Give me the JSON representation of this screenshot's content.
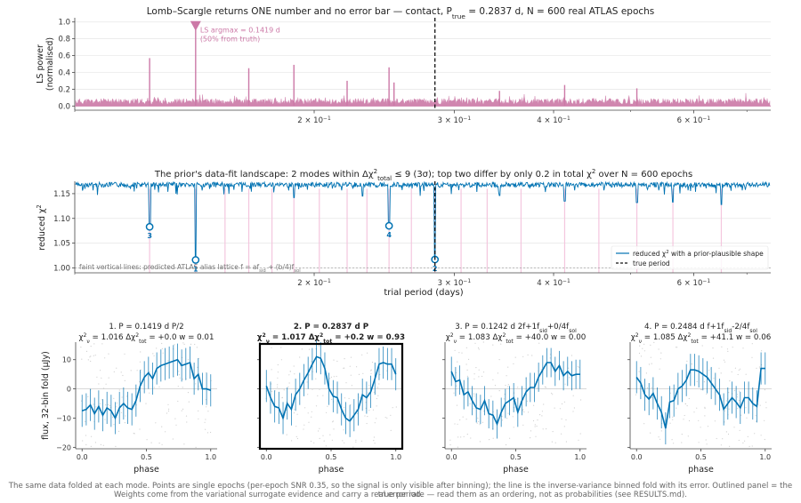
{
  "colors": {
    "ls": "#cc79a7",
    "chi": "#0072b2",
    "alias": "#f4c6de",
    "grid": "#e6e6e6",
    "axis": "#444444"
  },
  "chart_data": [
    {
      "type": "line",
      "id": "ls",
      "title": "Lomb–Scargle returns ONE number and no error bar   —   contact, P",
      "title_sub": "true",
      "title_tail": " = 0.2837 d, N = 600 real ATLAS epochs",
      "ylabel": [
        "LS power",
        "(normalised)"
      ],
      "xscale": "log",
      "xlim": [
        0.1,
        0.75
      ],
      "ylim": [
        -0.05,
        1.05
      ],
      "yticks": [
        0.0,
        0.2,
        0.4,
        0.6,
        0.8,
        1.0
      ],
      "ytick_labels": [
        "0.0",
        "0.2",
        "0.4",
        "0.6",
        "0.8",
        "1.0"
      ],
      "xticks": [
        0.2,
        0.3,
        0.4,
        0.6
      ],
      "xtick_base": [
        "2 × 10",
        "3 × 10",
        "4 × 10",
        "6 × 10"
      ],
      "xtick_exp": "−1",
      "true_period": 0.2837,
      "peaks": [
        {
          "x": 0.1419,
          "y": 1.0
        },
        {
          "x": 0.1242,
          "y": 0.57
        },
        {
          "x": 0.1655,
          "y": 0.45
        },
        {
          "x": 0.1886,
          "y": 0.49
        },
        {
          "x": 0.2484,
          "y": 0.46
        },
        {
          "x": 0.22,
          "y": 0.3
        },
        {
          "x": 0.252,
          "y": 0.28
        },
        {
          "x": 0.413,
          "y": 0.25
        },
        {
          "x": 0.509,
          "y": 0.21
        },
        {
          "x": 0.342,
          "y": 0.18
        }
      ],
      "annotation": {
        "x": 0.1419,
        "line1": "LS argmax = 0.1419 d",
        "line2": "(50% from truth)"
      }
    },
    {
      "type": "line",
      "id": "chi",
      "title_a": "The prior's data-fit landscape: 2 modes within Δχ",
      "title_sup": "2",
      "title_sub": "total",
      "title_b": " ≤ 9 (3σ); top two differ by only 0.2 in total χ",
      "title_sup2": "2",
      "title_c": " over N = 600 epochs",
      "xlabel": "trial period (days)",
      "ylabel": "reduced χ",
      "ylabel_sup": "2",
      "xscale": "log",
      "xlim": [
        0.1,
        0.75
      ],
      "ylim": [
        0.99,
        1.175
      ],
      "yticks": [
        1.0,
        1.05,
        1.1,
        1.15
      ],
      "ytick_labels": [
        "1.00",
        "1.05",
        "1.10",
        "1.15"
      ],
      "xticks": [
        0.2,
        0.3,
        0.4,
        0.6
      ],
      "xtick_base": [
        "2 × 10",
        "3 × 10",
        "4 × 10",
        "6 × 10"
      ],
      "xtick_exp": "−1",
      "true_period": 0.2837,
      "baseline": 1.17,
      "dips": [
        {
          "x": 0.1242,
          "y": 1.083
        },
        {
          "x": 0.1419,
          "y": 1.016
        },
        {
          "x": 0.2484,
          "y": 1.085
        },
        {
          "x": 0.2837,
          "y": 1.017
        },
        {
          "x": 0.413,
          "y": 1.135
        },
        {
          "x": 0.1886,
          "y": 1.142
        },
        {
          "x": 0.509,
          "y": 1.132
        },
        {
          "x": 0.565,
          "y": 1.133
        },
        {
          "x": 0.65,
          "y": 1.128
        },
        {
          "x": 0.23,
          "y": 1.145
        },
        {
          "x": 0.342,
          "y": 1.146
        }
      ],
      "markers": [
        {
          "x": 0.1242,
          "y": 1.083,
          "label": "3"
        },
        {
          "x": 0.1419,
          "y": 1.016,
          "label": "1"
        },
        {
          "x": 0.2484,
          "y": 1.085,
          "label": "4"
        },
        {
          "x": 0.2837,
          "y": 1.017,
          "label": "2"
        }
      ],
      "alias_lines": [
        0.1242,
        0.1419,
        0.1545,
        0.1655,
        0.177,
        0.1886,
        0.203,
        0.22,
        0.233,
        0.2484,
        0.265,
        0.2837,
        0.306,
        0.33,
        0.364,
        0.413,
        0.456,
        0.509,
        0.565,
        0.65
      ],
      "floor_line": 1.0,
      "note": "faint vertical lines: predicted ATLAS alias lattice  f = af",
      "note_sub1": "sid",
      "note_mid": " + (b/4)f",
      "note_sub2": "sol",
      "legend": [
        {
          "label_a": "reduced χ",
          "label_sup": "2",
          "label_b": " with a prior-plausible shape",
          "style": "solid"
        },
        {
          "label_a": "true period",
          "label_sup": "",
          "label_b": "",
          "style": "dashed"
        }
      ]
    },
    {
      "type": "line",
      "id": "fold1",
      "outlined": false,
      "title1": "1. P = 0.1419 d   P/2",
      "chi_r": "1.016",
      "dchi": "+0.0",
      "w": "0.01",
      "xlabel": "phase",
      "ylabel": "flux, 32-bin fold (µJy)",
      "xlim": [
        -0.05,
        1.05
      ],
      "ylim": [
        -20.5,
        16
      ],
      "yticks": [
        -20,
        -10,
        0,
        10
      ],
      "ytick_labels": [
        "−20",
        "−10",
        "0",
        "10"
      ],
      "xticks": [
        0.0,
        0.5,
        1.0
      ],
      "xtick_labels": [
        "0.0",
        "0.5",
        "1.0"
      ],
      "y": [
        -7.5,
        -7,
        -5.5,
        -8.5,
        -6,
        -9,
        -6.5,
        -7.5,
        -10,
        -6.5,
        -5,
        -6.5,
        -7,
        -4,
        1,
        4,
        5.5,
        3.5,
        7,
        8,
        8.5,
        9,
        9.5,
        10,
        8,
        8.5,
        9,
        3.5,
        5,
        0,
        0,
        -0.5
      ],
      "err": 5.5
    },
    {
      "type": "line",
      "id": "fold2",
      "outlined": true,
      "title1": "2. P = 0.2837 d   P",
      "chi_r": "1.017",
      "dchi": "+0.2",
      "w": "0.93",
      "xlabel": "phase",
      "xlim": [
        -0.05,
        1.05
      ],
      "ylim": [
        -20.5,
        16
      ],
      "xticks": [
        0.0,
        0.5,
        1.0
      ],
      "xtick_labels": [
        "0.0",
        "0.5",
        "1.0"
      ],
      "y": [
        1,
        -3,
        -6,
        -6.5,
        -10,
        -5,
        -7,
        -2,
        0,
        3,
        5.5,
        8.5,
        11,
        10.5,
        7,
        0,
        -2.5,
        -3,
        -7,
        -10,
        -11,
        -9,
        -7,
        -2,
        -3,
        -1,
        3.5,
        8.5,
        9,
        8.5,
        8.5,
        5
      ],
      "err": 5.5
    },
    {
      "type": "line",
      "id": "fold3",
      "outlined": false,
      "title1": "3. P = 0.1242 d   2f+1f",
      "title1_sub": "sid",
      "title1_tail": "+0/4f",
      "title1_sub2": "sol",
      "chi_r": "1.083",
      "dchi": "+40.0",
      "w": "0.00",
      "xlabel": "phase",
      "xlim": [
        -0.05,
        1.05
      ],
      "ylim": [
        -20.5,
        16
      ],
      "xticks": [
        0.0,
        0.5,
        1.0
      ],
      "xtick_labels": [
        "0.0",
        "0.5",
        "1.0"
      ],
      "y": [
        6,
        2.5,
        3,
        -2,
        -1,
        -4,
        -6.5,
        -7,
        -4,
        -8.5,
        -9,
        -12,
        -8,
        -5,
        -4,
        -3,
        -8,
        -4,
        -1,
        0.5,
        0.5,
        4,
        6.5,
        9,
        9,
        6,
        8,
        4.5,
        6,
        4.5,
        5,
        5
      ],
      "err": 5
    },
    {
      "type": "line",
      "id": "fold4",
      "outlined": false,
      "title1": "4. P = 0.2484 d   f+1f",
      "title1_sub": "sid",
      "title1_tail": "-2/4f",
      "title1_sub2": "sol",
      "chi_r": "1.085",
      "dchi": "+41.1",
      "w": "0.06",
      "xlabel": "phase",
      "xlim": [
        -0.05,
        1.05
      ],
      "ylim": [
        -20.5,
        16
      ],
      "xticks": [
        0.0,
        0.5,
        1.0
      ],
      "xtick_labels": [
        "0.0",
        "0.5",
        "1.0"
      ],
      "y": [
        4,
        2,
        -2,
        -3.5,
        -1.5,
        -5,
        -8,
        -13.5,
        -4.5,
        -4,
        0,
        1,
        3,
        6.5,
        6.5,
        6,
        5,
        4,
        2,
        0,
        -2,
        -7,
        -5,
        -3,
        -4.5,
        -6.5,
        -3,
        -3,
        -5,
        -6,
        7,
        7
      ],
      "err": 5.5
    }
  ],
  "caption_line1": "The same data folded at each mode. Points are single epochs (per-epoch SNR 0.35, so the signal is only visible after binning); the line is the inverse-variance binned fold with its error. Outlined panel = the true period.",
  "caption_line2": "Weights come from the variational surrogate evidence and carry a real error rate — read them as an ordering, not as probabilities (see RESULTS.md)."
}
